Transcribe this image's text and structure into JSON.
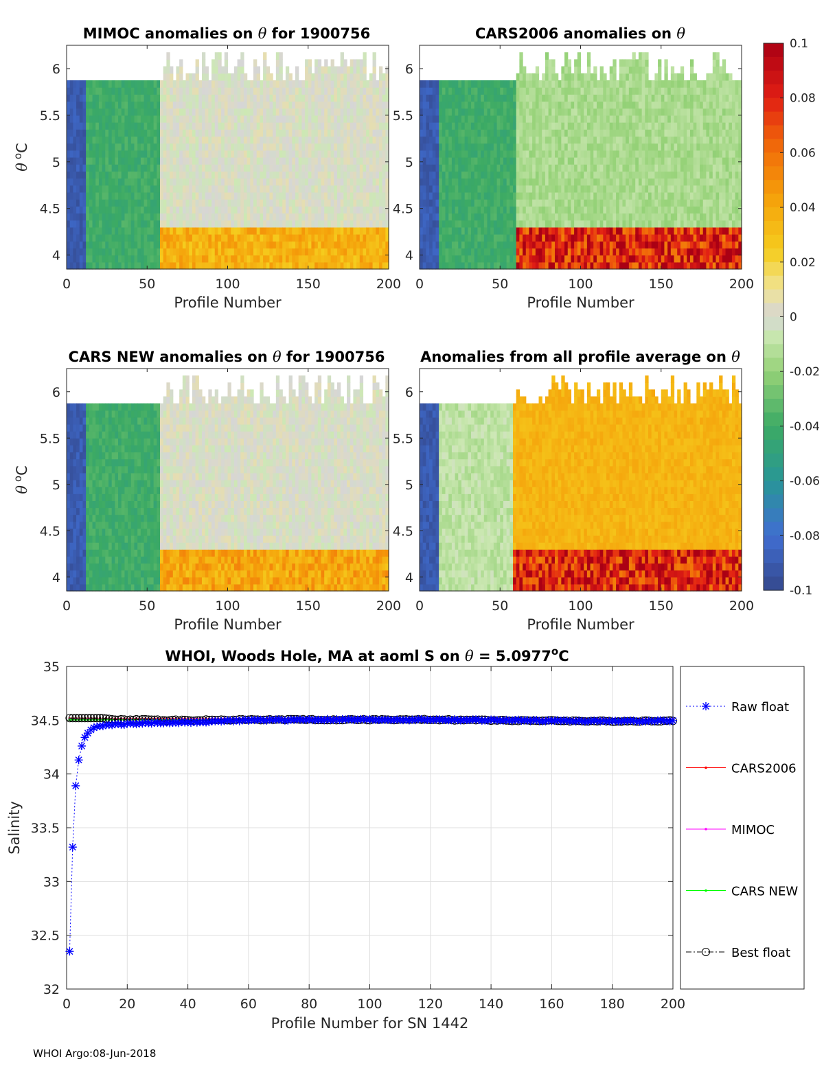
{
  "footer": "WHOI Argo:08-Jun-2018",
  "colorbar": {
    "ticks": [
      "0.1",
      "0.08",
      "0.06",
      "0.04",
      "0.02",
      "0",
      "-0.02",
      "-0.04",
      "-0.06",
      "-0.08",
      "-0.1"
    ],
    "range": [
      -0.1,
      0.1
    ]
  },
  "chart_data": [
    {
      "type": "heatmap",
      "title_prefix": "MIMOC anomalies on ",
      "title_suffix": "  for 1900756",
      "theta_symbol": "θ",
      "xlabel": "Profile Number",
      "ylabel_symbol": "θ",
      "ylabel_unit": "C",
      "xlim": [
        0,
        200
      ],
      "ylim": [
        3.85,
        6.25
      ],
      "xticks": [
        "0",
        "50",
        "100",
        "150",
        "200"
      ],
      "yticks": [
        "4",
        "4.5",
        "5",
        "5.5",
        "6"
      ],
      "description_bands": [
        {
          "x": [
            0,
            12
          ],
          "anomaly": -0.09
        },
        {
          "x": [
            12,
            58
          ],
          "anomaly": -0.04
        },
        {
          "x": [
            58,
            200
          ],
          "anomaly": 0.0,
          "bottom_anomaly": 0.04
        }
      ]
    },
    {
      "type": "heatmap",
      "title_prefix": "CARS2006 anomalies on ",
      "title_suffix": "",
      "theta_symbol": "θ",
      "xlabel": "Profile Number",
      "ylabel_symbol": "",
      "ylabel_unit": "",
      "xlim": [
        0,
        200
      ],
      "ylim": [
        3.85,
        6.25
      ],
      "xticks": [
        "0",
        "50",
        "100",
        "150",
        "200"
      ],
      "yticks": [
        "4",
        "4.5",
        "5",
        "5.5",
        "6"
      ],
      "description_bands": [
        {
          "x": [
            0,
            12
          ],
          "anomaly": -0.09
        },
        {
          "x": [
            12,
            60
          ],
          "anomaly": -0.04
        },
        {
          "x": [
            60,
            200
          ],
          "anomaly": -0.015,
          "bottom_anomaly": 0.09
        }
      ]
    },
    {
      "type": "heatmap",
      "title_prefix": "CARS NEW anomalies on ",
      "title_suffix": " for 1900756",
      "theta_symbol": "θ",
      "xlabel": "Profile Number",
      "ylabel_symbol": "θ",
      "ylabel_unit": "C",
      "xlim": [
        0,
        200
      ],
      "ylim": [
        3.85,
        6.25
      ],
      "xticks": [
        "0",
        "50",
        "100",
        "150",
        "200"
      ],
      "yticks": [
        "4",
        "4.5",
        "5",
        "5.5",
        "6"
      ],
      "description_bands": [
        {
          "x": [
            0,
            12
          ],
          "anomaly": -0.09
        },
        {
          "x": [
            12,
            58
          ],
          "anomaly": -0.04
        },
        {
          "x": [
            58,
            200
          ],
          "anomaly": 0.0,
          "bottom_anomaly": 0.045
        }
      ]
    },
    {
      "type": "heatmap",
      "title_prefix": "Anomalies from all profile average on ",
      "title_suffix": "",
      "theta_symbol": "θ",
      "xlabel": "Profile Number",
      "ylabel_symbol": "",
      "ylabel_unit": "",
      "xlim": [
        0,
        200
      ],
      "ylim": [
        3.85,
        6.25
      ],
      "xticks": [
        "0",
        "50",
        "100",
        "150",
        "200"
      ],
      "yticks": [
        "4",
        "4.5",
        "5",
        "5.5",
        "6"
      ],
      "description_bands": [
        {
          "x": [
            0,
            12
          ],
          "anomaly": -0.09
        },
        {
          "x": [
            12,
            58
          ],
          "anomaly": -0.01
        },
        {
          "x": [
            58,
            200
          ],
          "anomaly": 0.035,
          "bottom_anomaly": 0.09
        }
      ]
    },
    {
      "type": "line",
      "title": "WHOI, Woods Hole, MA at aoml S on θ = 5.0977°C",
      "title_parts": {
        "prefix": "WHOI, Woods Hole, MA at aoml S on ",
        "theta": "θ",
        "value": " = 5.0977",
        "degree": "o",
        "unit": "C"
      },
      "xlabel": "Profile Number for SN 1442",
      "ylabel": "Salinity",
      "xlim": [
        0,
        200
      ],
      "ylim": [
        32,
        35
      ],
      "xticks": [
        "0",
        "20",
        "40",
        "60",
        "80",
        "100",
        "120",
        "140",
        "160",
        "180",
        "200"
      ],
      "yticks": [
        "32",
        "32.5",
        "33",
        "33.5",
        "34",
        "34.5",
        "35"
      ],
      "grid": true,
      "legend_position": "outside-right",
      "series": [
        {
          "name": "Raw float",
          "color": "#0000ff",
          "marker": "asterisk",
          "linestyle": "dotted",
          "x": [
            1,
            2,
            3,
            4,
            5,
            6,
            7,
            8,
            9,
            10,
            12,
            15,
            20,
            25,
            30,
            40,
            50,
            60,
            80,
            100,
            120,
            140,
            160,
            180,
            200
          ],
          "y": [
            32.35,
            33.32,
            33.89,
            34.13,
            34.26,
            34.34,
            34.38,
            34.41,
            34.43,
            34.44,
            34.45,
            34.46,
            34.465,
            34.47,
            34.475,
            34.48,
            34.49,
            34.5,
            34.505,
            34.505,
            34.505,
            34.5,
            34.495,
            34.49,
            34.495
          ]
        },
        {
          "name": "CARS2006",
          "color": "#ff0000",
          "marker": "dot",
          "linestyle": "solid",
          "x": [
            1,
            200
          ],
          "y": [
            34.515,
            34.51
          ]
        },
        {
          "name": "MIMOC",
          "color": "#ff00ff",
          "marker": "dot",
          "linestyle": "solid",
          "x": [
            1,
            200
          ],
          "y": [
            34.51,
            34.505
          ]
        },
        {
          "name": "CARS NEW",
          "color": "#00ff00",
          "marker": "dot",
          "linestyle": "solid",
          "x": [
            1,
            200
          ],
          "y": [
            34.505,
            34.5
          ]
        },
        {
          "name": "Best float",
          "color": "#000000",
          "marker": "circle",
          "linestyle": "dashdot",
          "x": [
            1,
            10,
            20,
            40,
            60,
            80,
            100,
            120,
            140,
            160,
            180,
            200
          ],
          "y": [
            34.52,
            34.52,
            34.505,
            34.5,
            34.505,
            34.505,
            34.505,
            34.505,
            34.5,
            34.495,
            34.49,
            34.495
          ]
        }
      ]
    }
  ]
}
